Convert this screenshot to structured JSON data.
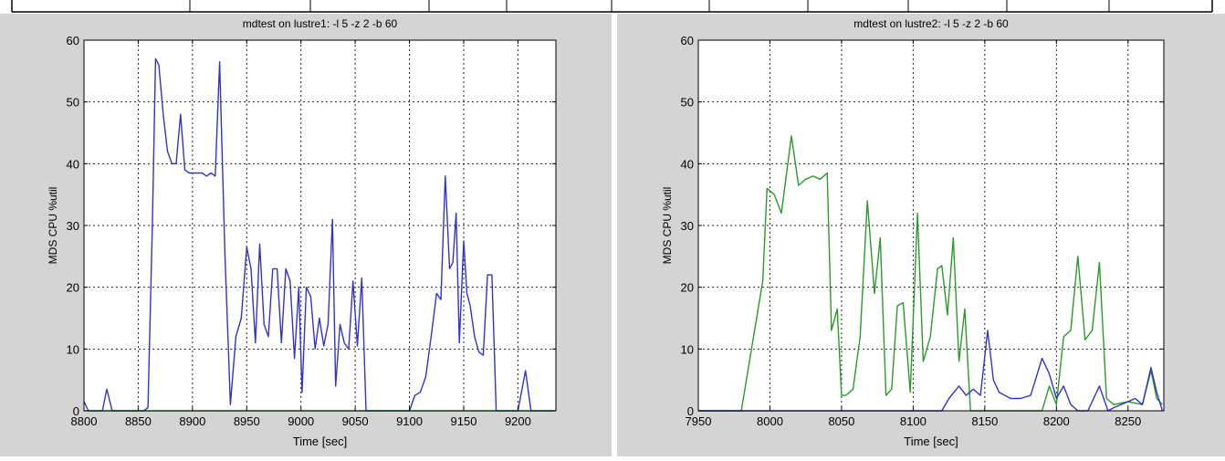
{
  "chart_data": [
    {
      "type": "line",
      "title": "mdtest on lustre1: -l 5 -z 2 -b 60",
      "xlabel": "Time [sec]",
      "ylabel": "MDS CPU %util",
      "xlim": [
        8800,
        9235
      ],
      "ylim": [
        0,
        60
      ],
      "xticks": [
        8800,
        8850,
        8900,
        8950,
        9000,
        9050,
        9100,
        9150,
        9200
      ],
      "yticks": [
        0,
        10,
        20,
        30,
        40,
        50,
        60
      ],
      "grid": true,
      "series": [
        {
          "color": "#3333cc",
          "x": [
            8800,
            8804,
            8810,
            8817,
            8821,
            8826,
            8833,
            8841,
            8851,
            8855,
            8859,
            8863,
            8866,
            8869,
            8873,
            8877,
            8881,
            8885,
            8889,
            8893,
            8897,
            8901,
            8905,
            8909,
            8913,
            8917,
            8921,
            8925,
            8927,
            8930,
            8935,
            8940,
            8945,
            8950,
            8954,
            8958,
            8962,
            8966,
            8970,
            8974,
            8978,
            8982,
            8986,
            8990,
            8994,
            8998,
            9001,
            9005,
            9009,
            9013,
            9017,
            9021,
            9025,
            9029,
            9032,
            9036,
            9040,
            9044,
            9048,
            9052,
            9056,
            9060,
            9064,
            9068,
            9072,
            9074,
            9078,
            9082,
            9090,
            9100,
            9105,
            9110,
            9115,
            9120,
            9125,
            9129,
            9133,
            9137,
            9140,
            9143,
            9146,
            9150,
            9153,
            9156,
            9160,
            9164,
            9168,
            9172,
            9176,
            9180,
            9184,
            9187,
            9190,
            9200,
            9207,
            9212,
            9220,
            9228,
            9233
          ],
          "y": [
            1.5,
            0,
            0,
            0,
            3.5,
            0,
            0,
            0,
            0,
            0,
            0.5,
            30,
            57,
            56,
            48,
            42,
            40,
            40,
            48,
            39,
            38.5,
            38.5,
            38.5,
            38.5,
            38,
            38.5,
            38,
            56.5,
            44,
            25,
            1,
            12,
            15,
            26.5,
            23,
            11,
            27,
            14,
            12,
            23,
            23,
            11,
            23,
            21,
            8.5,
            20,
            3,
            20,
            18.5,
            10,
            15,
            10.5,
            14,
            31,
            4,
            14,
            11,
            10,
            21,
            10.5,
            21.5,
            0,
            0,
            0,
            0,
            0,
            0,
            0,
            0,
            0,
            2.5,
            3,
            5.5,
            12,
            19,
            18,
            38,
            23,
            24,
            32,
            11,
            27.5,
            19,
            17,
            12,
            9.5,
            9,
            22,
            22,
            0,
            0,
            0,
            0,
            0,
            6.5,
            0,
            0,
            0,
            0
          ]
        },
        {
          "color": "#33aa33",
          "x": [
            8800,
            9235
          ],
          "y": [
            0,
            0
          ]
        }
      ]
    },
    {
      "type": "line",
      "title": "mdtest on lustre2: -l 5 -z 2 -b 60",
      "xlabel": "Time [sec]",
      "ylabel": "MDS CPU %util",
      "xlim": [
        7950,
        8275
      ],
      "ylim": [
        0,
        60
      ],
      "xticks": [
        7950,
        8000,
        8050,
        8100,
        8150,
        8200,
        8250
      ],
      "yticks": [
        0,
        10,
        20,
        30,
        40,
        50,
        60
      ],
      "grid": true,
      "series": [
        {
          "color": "#2a9a2a",
          "x": [
            7950,
            7980,
            7995,
            7998,
            8003,
            8008,
            8015,
            8020,
            8025,
            8030,
            8035,
            8040,
            8043,
            8047,
            8050,
            8053,
            8058,
            8063,
            8068,
            8073,
            8077,
            8081,
            8085,
            8089,
            8093,
            8098,
            8103,
            8107,
            8112,
            8117,
            8120,
            8124,
            8128,
            8132,
            8136,
            8140,
            8144,
            8148,
            8152,
            8156,
            8160,
            8165,
            8180,
            8190,
            8195,
            8200,
            8205,
            8210,
            8215,
            8220,
            8225,
            8230,
            8235,
            8240,
            8250,
            8260,
            8266,
            8270,
            8274
          ],
          "y": [
            0,
            0,
            21,
            36,
            35,
            32,
            44.5,
            36.5,
            37.5,
            38,
            37.5,
            38.5,
            13,
            16.5,
            2.5,
            2.5,
            3.5,
            12,
            34,
            19,
            28,
            2.5,
            3.5,
            17,
            17.5,
            3,
            32,
            8,
            12,
            23,
            23.5,
            15.5,
            28,
            8,
            16.5,
            0,
            0,
            0,
            0,
            0,
            0,
            0,
            0,
            0,
            4,
            1,
            12,
            13,
            25,
            11.5,
            13,
            24,
            2,
            1,
            1.5,
            1,
            6.5,
            2,
            1
          ]
        },
        {
          "color": "#3333cc",
          "x": [
            7950,
            8120,
            8125,
            8132,
            8137,
            8142,
            8147,
            8152,
            8156,
            8160,
            8168,
            8175,
            8182,
            8190,
            8195,
            8200,
            8205,
            8210,
            8215,
            8222,
            8230,
            8236,
            8240,
            8250,
            8255,
            8260,
            8266,
            8270,
            8274
          ],
          "y": [
            0,
            0,
            2,
            4,
            2.5,
            3.5,
            2.5,
            13,
            5,
            3,
            2,
            2,
            2.5,
            8.5,
            6,
            2,
            4,
            1,
            0,
            0,
            4,
            0,
            0.5,
            1.5,
            2,
            1,
            7,
            3,
            0
          ]
        }
      ]
    }
  ]
}
